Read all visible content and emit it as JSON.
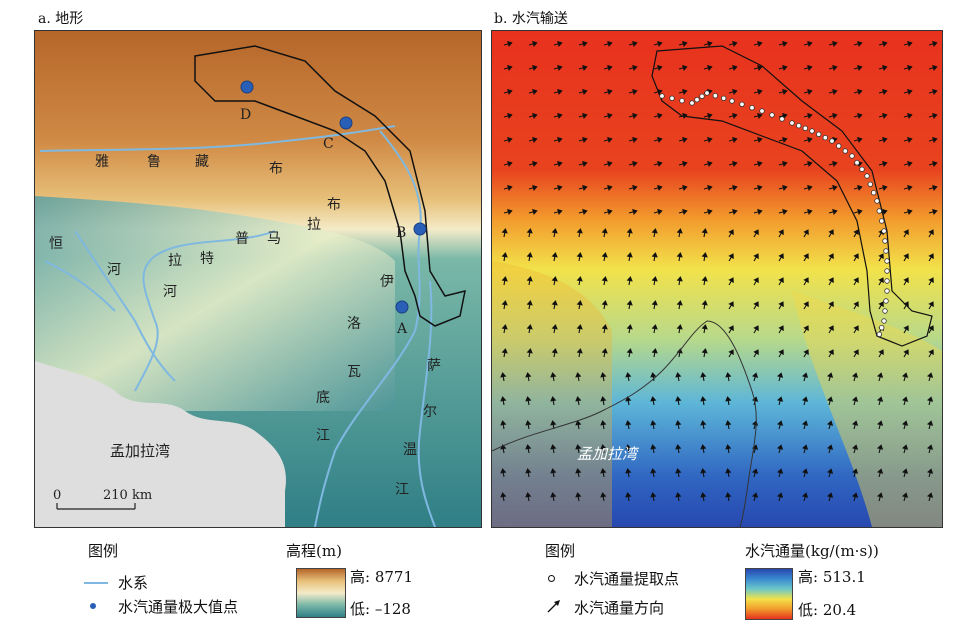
{
  "panel_a": {
    "title": "a. 地形",
    "river_labels": [
      "雅",
      "鲁",
      "藏",
      "布",
      "布",
      "拉",
      "马",
      "普",
      "特",
      "拉",
      "恒",
      "河",
      "河",
      "伊",
      "洛",
      "瓦",
      "底",
      "江",
      "萨",
      "尔",
      "温",
      "江"
    ],
    "point_labels": [
      "A",
      "B",
      "C",
      "D"
    ],
    "bay_label": "孟加拉湾",
    "scale_start": "0",
    "scale_end": "210 km"
  },
  "panel_b": {
    "title": "b. 水汽输送",
    "bay_label": "孟加拉湾"
  },
  "legend_a": {
    "title": "图例",
    "river": "水系",
    "max_point": "水汽通量极大值点",
    "elev_title": "高程(m)",
    "elev_high": "高: 8771",
    "elev_low": "低: –128"
  },
  "legend_b": {
    "title": "图例",
    "extract_point": "水汽通量提取点",
    "direction": "水汽通量方向",
    "flux_title": "水汽通量(kg/(m·s))",
    "flux_high": "高: 513.1",
    "flux_low": "低: 20.4"
  },
  "colors": {
    "river": "#7fb8e0",
    "point": "#2a5fb8",
    "boundary": "#111111"
  }
}
